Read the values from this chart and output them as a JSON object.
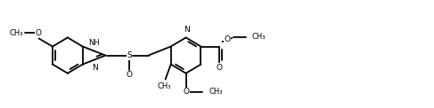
{
  "bg": "#ffffff",
  "lc": "#000000",
  "lw": 1.3,
  "fs": 6.5,
  "figw": 4.87,
  "figh": 1.22,
  "xlim": [
    0,
    9.5
  ],
  "ylim": [
    0,
    2.3
  ]
}
